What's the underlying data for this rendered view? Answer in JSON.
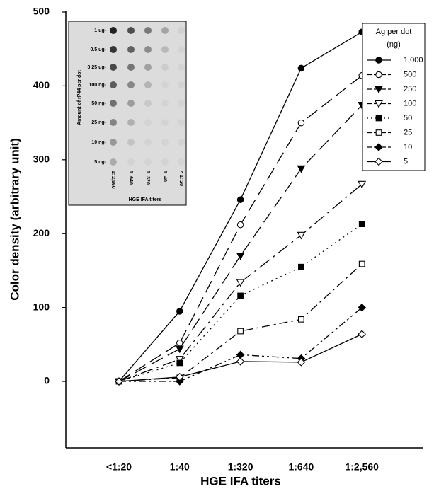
{
  "chart_data": {
    "type": "line",
    "y_label": "Color density (arbitrary unit)",
    "x_label": "HGE IFA titers",
    "categories": [
      "<1:20",
      "1:40",
      "1:320",
      "1:640",
      "1:2,560"
    ],
    "ylim": [
      -90,
      500
    ],
    "yticks": [
      0,
      100,
      200,
      300,
      400,
      500
    ],
    "legend_title": "Ag per dot",
    "legend_unit": "(ng)",
    "legend": "upper right",
    "series": [
      {
        "name": "1,000",
        "color": "#000000",
        "marker": "circle",
        "filled": true,
        "dash": "solid",
        "values": [
          0,
          95,
          246,
          424,
          473
        ]
      },
      {
        "name": "500",
        "color": "#000000",
        "marker": "circle",
        "filled": false,
        "dash": "long",
        "values": [
          0,
          52,
          212,
          350,
          414
        ]
      },
      {
        "name": "250",
        "color": "#000000",
        "marker": "triangle-down",
        "filled": true,
        "dash": "long",
        "values": [
          0,
          44,
          170,
          288,
          374
        ]
      },
      {
        "name": "100",
        "color": "#000000",
        "marker": "triangle-down",
        "filled": false,
        "dash": "dashdot-long",
        "values": [
          0,
          30,
          134,
          198,
          267
        ]
      },
      {
        "name": "50",
        "color": "#000000",
        "marker": "square",
        "filled": true,
        "dash": "dotted",
        "values": [
          0,
          25,
          116,
          155,
          213
        ]
      },
      {
        "name": "25",
        "color": "#000000",
        "marker": "square",
        "filled": false,
        "dash": "dashdot",
        "values": [
          0,
          5,
          68,
          84,
          159
        ]
      },
      {
        "name": "10",
        "color": "#000000",
        "marker": "diamond",
        "filled": true,
        "dash": "dashdotdot",
        "values": [
          0,
          0,
          36,
          31,
          100
        ]
      },
      {
        "name": "5",
        "color": "#000000",
        "marker": "diamond",
        "filled": false,
        "dash": "solid",
        "values": [
          0,
          6,
          27,
          26,
          64
        ]
      }
    ]
  },
  "inset": {
    "y_label": "Amount of rP44 per dot",
    "row_labels": [
      "1 ug-",
      "0.5 ug-",
      "0.25 ug-",
      "100 ng-",
      "50 ng-",
      "25 ng-",
      "10 ng-",
      "5 ng-"
    ],
    "column_labels": [
      "1: 2,560",
      "1: 640",
      "1: 320",
      "1: 40",
      "< 1: 20"
    ],
    "x_label": "HGE IFA titers"
  }
}
